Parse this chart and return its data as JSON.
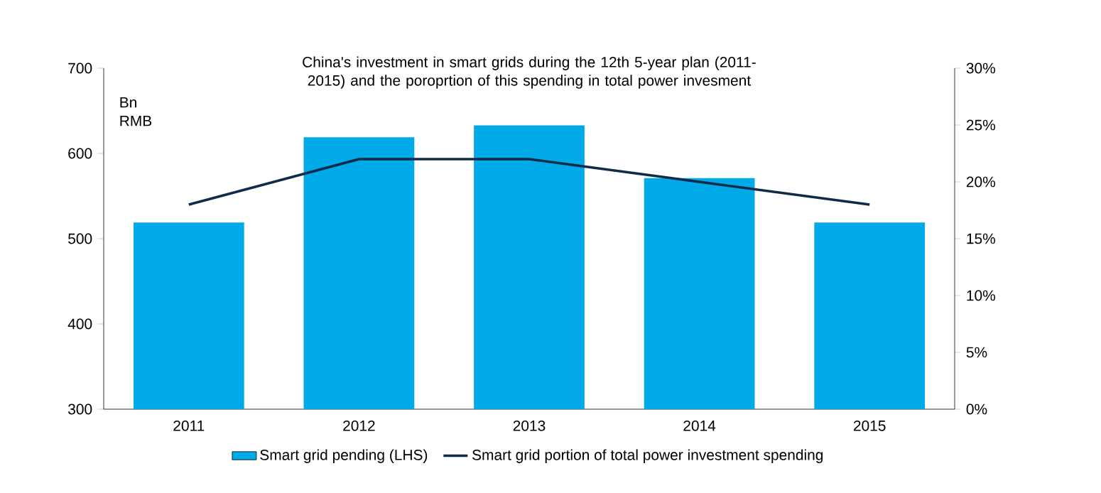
{
  "chart_data": {
    "type": "bar",
    "title": "China's investment in smart grids during the 12th 5-year plan (2011-2015) and the poroprtion of this spending in total power invesment",
    "ylabel": "Bn RMB",
    "categories": [
      "2011",
      "2012",
      "2013",
      "2014",
      "2015"
    ],
    "series": [
      {
        "name": "Smart grid pending (LHS)",
        "color": "#00a9e8",
        "values": [
          519,
          619,
          633,
          571,
          519
        ]
      },
      {
        "name": "Smart grid portion of total power investment spending",
        "type": "line",
        "axis": "y2",
        "color": "#0f2a4a",
        "values": [
          18,
          22,
          22,
          20,
          18
        ]
      }
    ],
    "ylim": [
      300,
      700
    ],
    "yticks": [
      300,
      400,
      500,
      600,
      700
    ],
    "y2lim": [
      0,
      30
    ],
    "y2ticks": [
      {
        "value": 0,
        "label": "0%"
      },
      {
        "value": 5,
        "label": "5%"
      },
      {
        "value": 10,
        "label": "10%"
      },
      {
        "value": 15,
        "label": "15%"
      },
      {
        "value": 20,
        "label": "20%"
      },
      {
        "value": 25,
        "label": "25%"
      },
      {
        "value": 30,
        "label": "30%"
      }
    ],
    "legend": "bottom",
    "grid": false,
    "marker": "none",
    "line_style": "solid"
  }
}
